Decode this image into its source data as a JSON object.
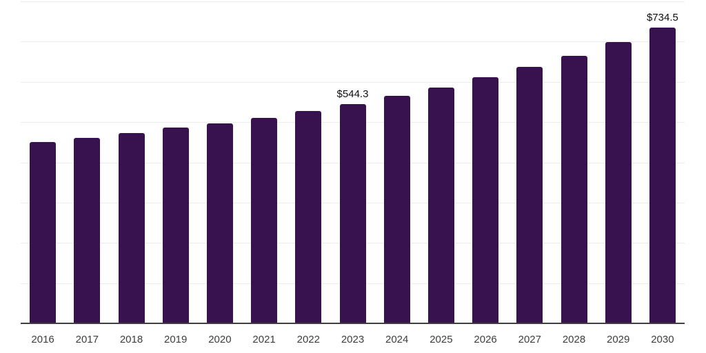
{
  "chart_data": {
    "type": "bar",
    "title": "",
    "xlabel": "",
    "ylabel": "",
    "categories": [
      "2016",
      "2017",
      "2018",
      "2019",
      "2020",
      "2021",
      "2022",
      "2023",
      "2024",
      "2025",
      "2026",
      "2027",
      "2028",
      "2029",
      "2030"
    ],
    "values": [
      450.0,
      460.3,
      472.6,
      486.0,
      497.4,
      509.9,
      527.0,
      544.3,
      564.6,
      585.6,
      611.2,
      638.1,
      665.4,
      698.4,
      734.5
    ],
    "data_labels": [
      {
        "category": "2023",
        "text": "$544.3"
      },
      {
        "category": "2030",
        "text": "$734.5"
      }
    ],
    "ylim": [
      0,
      800
    ],
    "gridline_step": 100,
    "grid": "horizontal",
    "legend_position": "none",
    "y_axis_labels_visible": false
  },
  "colors": {
    "bar": "#38114f",
    "gridline": "#ececec",
    "axis_line": "#3f3f3f",
    "tick_label": "#3d3d3d",
    "data_label": "#0e0e0e",
    "background": "#ffffff"
  }
}
